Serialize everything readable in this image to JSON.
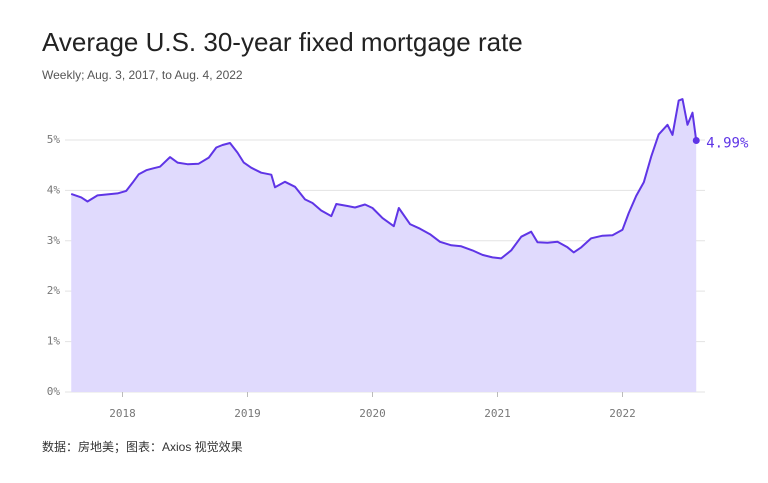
{
  "chart_data": {
    "type": "area",
    "title": "Average U.S. 30-year fixed mortgage rate",
    "subtitle": "Weekly; Aug. 3, 2017, to Aug. 4, 2022",
    "source": "数据：房地美；图表：Axios 视觉效果",
    "x": [
      2017.59,
      2017.67,
      2017.72,
      2017.8,
      2017.88,
      2017.96,
      2018.03,
      2018.08,
      2018.13,
      2018.19,
      2018.25,
      2018.3,
      2018.38,
      2018.44,
      2018.52,
      2018.61,
      2018.69,
      2018.75,
      2018.8,
      2018.86,
      2018.92,
      2018.97,
      2019.03,
      2019.11,
      2019.19,
      2019.22,
      2019.3,
      2019.38,
      2019.46,
      2019.52,
      2019.59,
      2019.67,
      2019.71,
      2019.8,
      2019.86,
      2019.94,
      2020.0,
      2020.08,
      2020.17,
      2020.21,
      2020.3,
      2020.38,
      2020.46,
      2020.54,
      2020.63,
      2020.71,
      2020.8,
      2020.88,
      2020.96,
      2021.03,
      2021.11,
      2021.19,
      2021.27,
      2021.32,
      2021.4,
      2021.48,
      2021.56,
      2021.61,
      2021.67,
      2021.75,
      2021.84,
      2021.92,
      2022.0,
      2022.05,
      2022.11,
      2022.17,
      2022.23,
      2022.29,
      2022.36,
      2022.4,
      2022.45,
      2022.48,
      2022.52,
      2022.56,
      2022.59
    ],
    "values": [
      3.93,
      3.86,
      3.78,
      3.9,
      3.92,
      3.94,
      3.99,
      4.15,
      4.32,
      4.4,
      4.44,
      4.47,
      4.66,
      4.55,
      4.52,
      4.53,
      4.65,
      4.85,
      4.9,
      4.94,
      4.75,
      4.55,
      4.45,
      4.35,
      4.31,
      4.06,
      4.17,
      4.07,
      3.82,
      3.75,
      3.6,
      3.49,
      3.73,
      3.69,
      3.66,
      3.72,
      3.65,
      3.45,
      3.29,
      3.65,
      3.33,
      3.24,
      3.13,
      2.98,
      2.91,
      2.89,
      2.81,
      2.72,
      2.67,
      2.65,
      2.81,
      3.08,
      3.18,
      2.97,
      2.96,
      2.98,
      2.87,
      2.77,
      2.87,
      3.05,
      3.1,
      3.11,
      3.22,
      3.55,
      3.89,
      4.16,
      4.67,
      5.11,
      5.3,
      5.1,
      5.78,
      5.81,
      5.3,
      5.54,
      4.99
    ],
    "value_labels": [
      null,
      null,
      null,
      null,
      null,
      null,
      null,
      null,
      null,
      null,
      null,
      null,
      null,
      null,
      null,
      null,
      null,
      null,
      null,
      null,
      null,
      null,
      null,
      null,
      null,
      null,
      null,
      null,
      null,
      null,
      null,
      null,
      null,
      null,
      null,
      null,
      null,
      null,
      null,
      null,
      null,
      null,
      null,
      null,
      null,
      null,
      null,
      null,
      null,
      null,
      null,
      null,
      null,
      null,
      null,
      null,
      null,
      null,
      null,
      null,
      null,
      null,
      null,
      null,
      null,
      null,
      null,
      null,
      null,
      null,
      null,
      null,
      null,
      null,
      "4.99%"
    ],
    "color": "#5f35e6",
    "fill": "#e0dafd",
    "xlim": [
      2017.54,
      2022.66
    ],
    "xticks": [
      2018,
      2019,
      2020,
      2021,
      2022
    ],
    "ylim": [
      0,
      5.9
    ],
    "yticks": [
      {
        "value": 0,
        "label": "0%"
      },
      {
        "value": 1,
        "label": "1%"
      },
      {
        "value": 2,
        "label": "2%"
      },
      {
        "value": 3,
        "label": "3%"
      },
      {
        "value": 4,
        "label": "4%"
      },
      {
        "value": 5,
        "label": "5%"
      }
    ],
    "grid": true
  }
}
